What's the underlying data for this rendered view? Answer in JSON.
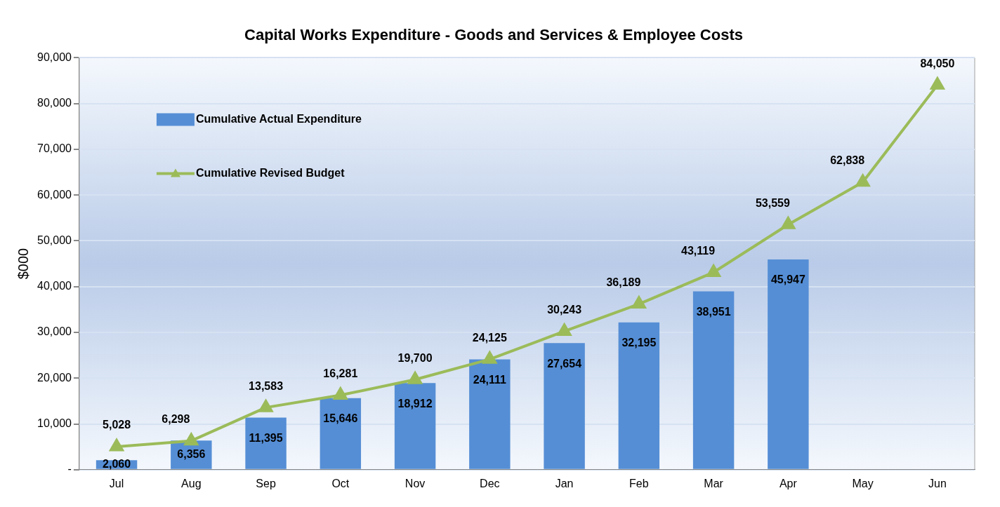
{
  "chart_data": {
    "type": "bar",
    "title": "Capital Works Expenditure - Goods and Services & Employee Costs",
    "ylabel": "$000",
    "categories": [
      "Jul",
      "Aug",
      "Sep",
      "Oct",
      "Nov",
      "Dec",
      "Jan",
      "Feb",
      "Mar",
      "Apr",
      "May",
      "Jun"
    ],
    "series": [
      {
        "name": "Cumulative Actual Expenditure",
        "color": "#558ed5",
        "values": [
          2060,
          6356,
          11395,
          15646,
          18912,
          24111,
          27654,
          32195,
          38951,
          45947,
          null,
          null
        ],
        "value_labels": [
          "2,060",
          "6,356",
          "11,395",
          "15,646",
          "18,912",
          "24,111",
          "27,654",
          "32,195",
          "38,951",
          "45,947",
          null,
          null
        ]
      },
      {
        "name": "Cumulative Revised Budget",
        "type": "line",
        "color": "#9bbb59",
        "marker": "triangle",
        "values": [
          5028,
          6298,
          13583,
          16281,
          19700,
          24125,
          30243,
          36189,
          43119,
          53559,
          62838,
          84050
        ],
        "value_labels": [
          "5,028",
          "6,298",
          "13,583",
          "16,281",
          "19,700",
          "24,125",
          "30,243",
          "36,189",
          "43,119",
          "53,559",
          "62,838",
          "84,050"
        ]
      }
    ],
    "ylim": [
      0,
      90000
    ],
    "yticks": [
      {
        "value": 0,
        "label": "-"
      },
      {
        "value": 10000,
        "label": "10,000"
      },
      {
        "value": 20000,
        "label": "20,000"
      },
      {
        "value": 30000,
        "label": "30,000"
      },
      {
        "value": 40000,
        "label": "40,000"
      },
      {
        "value": 50000,
        "label": "50,000"
      },
      {
        "value": 60000,
        "label": "60,000"
      },
      {
        "value": 70000,
        "label": "70,000"
      },
      {
        "value": 80000,
        "label": "80,000"
      },
      {
        "value": 90000,
        "label": "90,000"
      }
    ],
    "grid": "y",
    "legend": "top left"
  }
}
